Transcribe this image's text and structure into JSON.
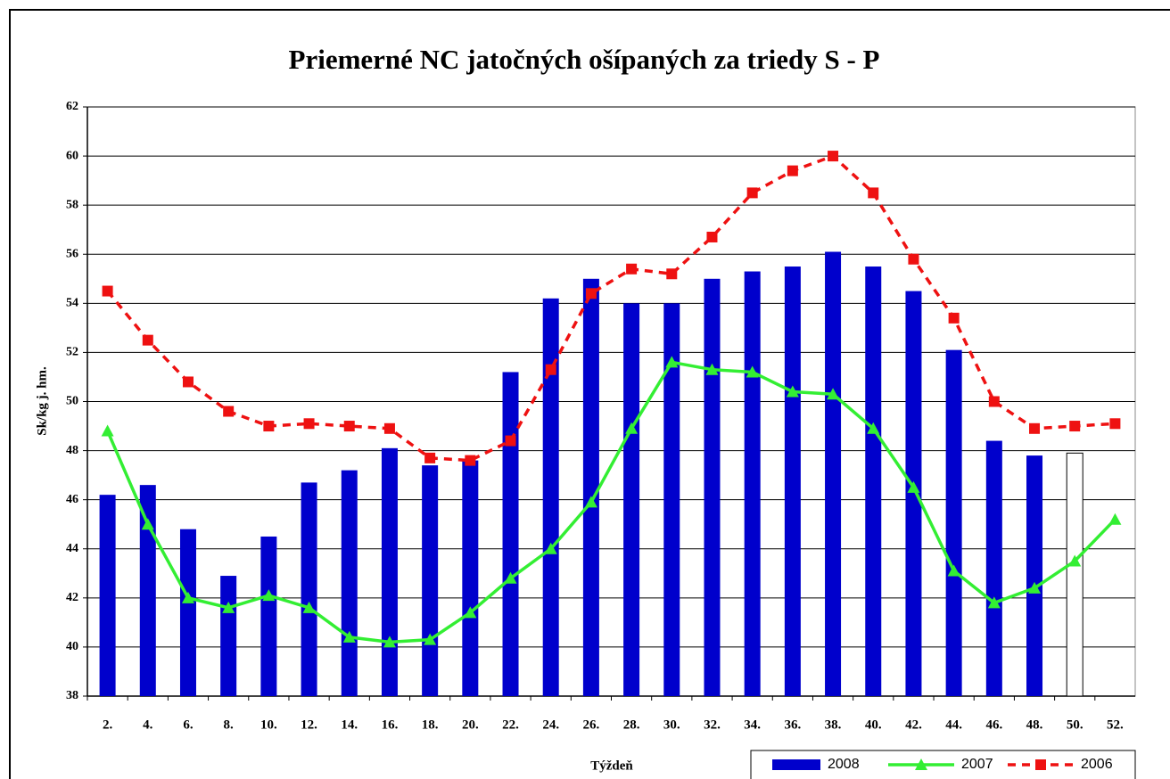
{
  "chart_data": {
    "type": "bar",
    "title": "Priemerné NC jatočných ošípaných za triedy S - P",
    "y_label": "Sk/kg j. hm.",
    "x_label": "Týždeň",
    "categories": [
      "2.",
      "4.",
      "6.",
      "8.",
      "10.",
      "12.",
      "14.",
      "16.",
      "18.",
      "20.",
      "22.",
      "24.",
      "26.",
      "28.",
      "30.",
      "32.",
      "34.",
      "36.",
      "38.",
      "40.",
      "42.",
      "44.",
      "46.",
      "48.",
      "50.",
      "52."
    ],
    "series": [
      {
        "name": "2008",
        "type": "bar",
        "color": "#0000cc",
        "colors": [
          "#0000cc",
          "#0000cc",
          "#0000cc",
          "#0000cc",
          "#0000cc",
          "#0000cc",
          "#0000cc",
          "#0000cc",
          "#0000cc",
          "#0000cc",
          "#0000cc",
          "#0000cc",
          "#0000cc",
          "#0000cc",
          "#0000cc",
          "#0000cc",
          "#0000cc",
          "#0000cc",
          "#0000cc",
          "#0000cc",
          "#0000cc",
          "#0000cc",
          "#0000cc",
          "#0000cc",
          "#ffffff",
          "#0000cc"
        ],
        "values": [
          46.2,
          46.6,
          44.8,
          42.9,
          44.5,
          46.7,
          47.2,
          48.1,
          47.4,
          47.6,
          51.2,
          54.2,
          55.0,
          54.0,
          54.0,
          55.0,
          55.3,
          55.5,
          56.1,
          55.5,
          54.5,
          52.1,
          48.4,
          47.8,
          47.9,
          null
        ]
      },
      {
        "name": "2007",
        "type": "line",
        "color": "#33ee33",
        "marker": "triangle",
        "linestyle": "solid",
        "values": [
          48.8,
          45.0,
          42.0,
          41.6,
          42.1,
          41.6,
          40.4,
          40.2,
          40.3,
          41.4,
          42.8,
          44.0,
          45.9,
          48.9,
          51.6,
          51.3,
          51.2,
          50.4,
          50.3,
          48.9,
          46.5,
          43.1,
          41.8,
          42.4,
          43.5,
          45.2
        ]
      },
      {
        "name": "2006",
        "type": "line",
        "color": "#ee1111",
        "marker": "square",
        "linestyle": "dashed",
        "values": [
          54.5,
          52.5,
          50.8,
          49.6,
          49.0,
          49.1,
          49.0,
          48.9,
          47.7,
          47.6,
          48.4,
          51.3,
          54.4,
          55.4,
          55.2,
          56.7,
          58.5,
          59.4,
          60.0,
          58.5,
          55.8,
          53.4,
          50.0,
          48.9,
          49.0,
          49.1
        ]
      }
    ],
    "ylim": [
      38,
      62
    ],
    "yticks": [
      38,
      40,
      42,
      44,
      46,
      48,
      50,
      52,
      54,
      56,
      58,
      60,
      62
    ],
    "grid": true,
    "legend": "bottom-right"
  }
}
